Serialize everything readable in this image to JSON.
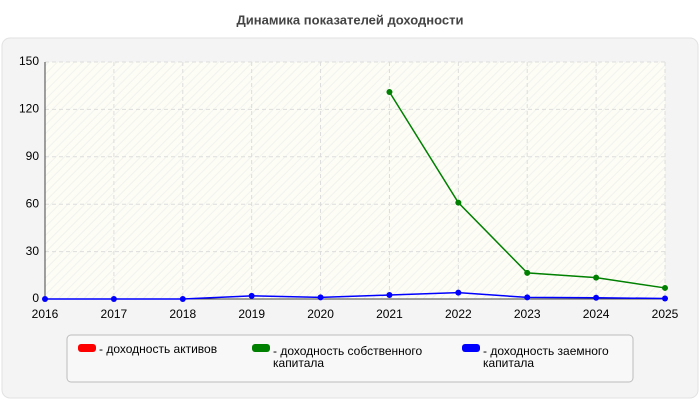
{
  "chart_data": {
    "type": "line",
    "title": "Динамика показателей доходности",
    "categories": [
      "2016",
      "2017",
      "2018",
      "2019",
      "2020",
      "2021",
      "2022",
      "2023",
      "2024",
      "2025"
    ],
    "series": [
      {
        "name": "- доходность активов",
        "color": "#ff0000",
        "values": [
          null,
          null,
          null,
          null,
          null,
          null,
          null,
          null,
          null,
          null
        ]
      },
      {
        "name": "- доходность собственного капитала",
        "color": "#008000",
        "values": [
          null,
          null,
          null,
          null,
          null,
          131,
          61,
          16.5,
          13.5,
          7
        ]
      },
      {
        "name": "- доходность заемного капитала",
        "color": "#0000ff",
        "values": [
          0,
          0,
          0,
          2,
          1,
          2.5,
          4,
          1,
          0.8,
          0.3
        ]
      }
    ],
    "ylim": [
      0,
      150
    ],
    "yticks": [
      0,
      30,
      60,
      90,
      120,
      150
    ],
    "grid": true
  }
}
